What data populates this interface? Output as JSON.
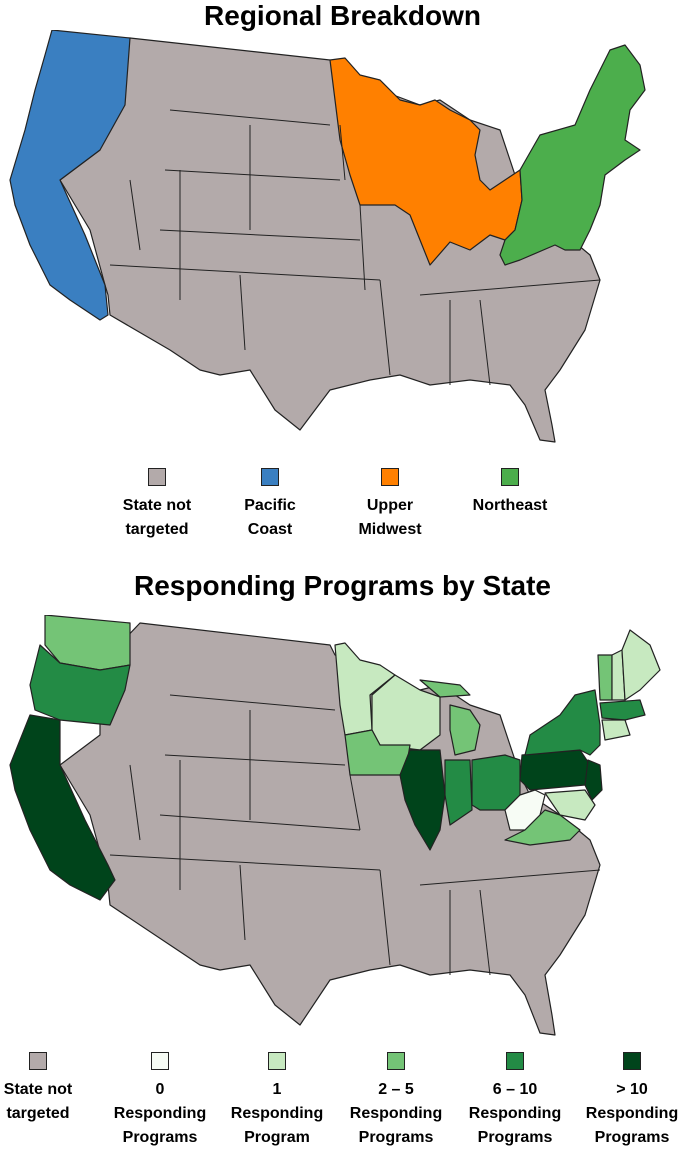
{
  "map1": {
    "title": "Regional Breakdown",
    "legend": [
      {
        "label": "State not\ntargeted",
        "color": "#b3aaaa"
      },
      {
        "label": "Pacific\nCoast",
        "color": "#3a7fc1"
      },
      {
        "label": "Upper\nMidwest",
        "color": "#ff8000"
      },
      {
        "label": "Northeast",
        "color": "#4cae4c"
      }
    ]
  },
  "map2": {
    "title": "Responding Programs by State",
    "legend": [
      {
        "label": "State not\ntargeted",
        "color": "#b3aaaa"
      },
      {
        "label": "0\nResponding\nPrograms",
        "color": "#f7fcf5"
      },
      {
        "label": "1\nResponding\nProgram",
        "color": "#c7e9c0"
      },
      {
        "label": "2 – 5\nResponding\nPrograms",
        "color": "#74c476"
      },
      {
        "label": "6 – 10\nResponding\nPrograms",
        "color": "#238b45"
      },
      {
        "label": "> 10\nResponding\nPrograms",
        "color": "#00441b"
      }
    ]
  }
}
